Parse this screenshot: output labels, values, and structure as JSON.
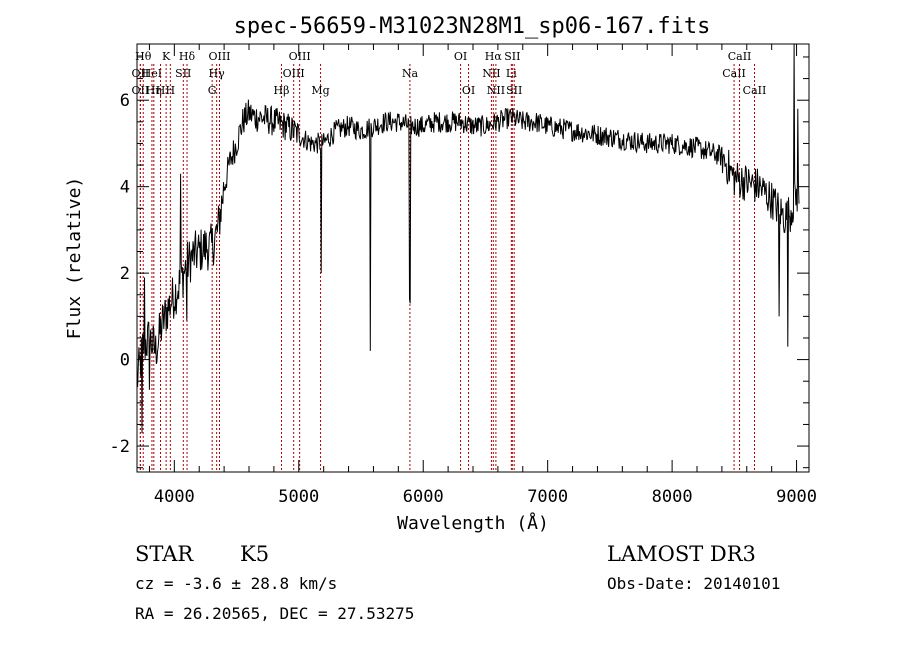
{
  "chart_data": {
    "type": "line",
    "title": "spec-56659-M31023N28M1_sp06-167.fits",
    "xlabel": "Wavelength (Å)",
    "ylabel": "Flux (relative)",
    "xlim": [
      3700,
      9100
    ],
    "ylim": [
      -2.6,
      7.3
    ],
    "xticks": [
      4000,
      5000,
      6000,
      7000,
      8000,
      9000
    ],
    "xtick_labels": [
      "4000",
      "5000",
      "6000",
      "7000",
      "8000",
      "9000"
    ],
    "yticks": [
      -2,
      0,
      2,
      4,
      6
    ],
    "ytick_labels": [
      "-2",
      "0",
      "2",
      "4",
      "6"
    ],
    "grid": false,
    "legend": "none",
    "line_color": "#000000",
    "marker_color": "#b00000",
    "spectrum_envelope": {
      "x": [
        3700,
        3750,
        3800,
        3850,
        3900,
        3950,
        4000,
        4050,
        4100,
        4150,
        4200,
        4250,
        4300,
        4350,
        4400,
        4450,
        4500,
        4550,
        4600,
        4650,
        4700,
        4800,
        4900,
        5000,
        5100,
        5200,
        5300,
        5400,
        5500,
        5600,
        5700,
        5800,
        5900,
        6000,
        6100,
        6200,
        6300,
        6400,
        6500,
        6600,
        6700,
        6800,
        6900,
        7000,
        7200,
        7400,
        7600,
        7800,
        8000,
        8200,
        8400,
        8500,
        8600,
        8700,
        8800,
        8850,
        8900,
        8950,
        9000
      ],
      "y": [
        -0.5,
        0.3,
        0.5,
        0.2,
        0.8,
        1.2,
        1.5,
        1.8,
        2.2,
        2.4,
        2.5,
        2.6,
        2.6,
        3.0,
        4.0,
        4.6,
        5.0,
        5.5,
        5.7,
        5.6,
        5.6,
        5.5,
        5.4,
        5.2,
        5.0,
        5.0,
        5.3,
        5.4,
        5.3,
        5.4,
        5.5,
        5.5,
        5.4,
        5.4,
        5.5,
        5.5,
        5.5,
        5.4,
        5.4,
        5.5,
        5.6,
        5.5,
        5.5,
        5.4,
        5.3,
        5.2,
        5.1,
        5.0,
        5.0,
        4.9,
        4.7,
        4.2,
        4.1,
        4.0,
        3.7,
        3.5,
        3.3,
        3.4,
        3.8
      ]
    },
    "spectrum_dips": [
      {
        "x": 3740,
        "y": -1.7
      },
      {
        "x": 3800,
        "y": -0.7
      },
      {
        "x": 4100,
        "y": 0.9
      },
      {
        "x": 5180,
        "y": 2.0
      },
      {
        "x": 5577,
        "y": 0.2
      },
      {
        "x": 5890,
        "y": 1.4
      },
      {
        "x": 5896,
        "y": 1.3
      },
      {
        "x": 8860,
        "y": 1.0
      },
      {
        "x": 8930,
        "y": 0.3
      }
    ],
    "spectrum_peaks": [
      {
        "x": 3760,
        "y": 1.9
      },
      {
        "x": 4050,
        "y": 4.3
      },
      {
        "x": 8980,
        "y": 7.3
      },
      {
        "x": 9010,
        "y": 5.8
      }
    ],
    "lines": [
      {
        "x": 3750,
        "label": "Hθ",
        "row": 0
      },
      {
        "x": 3727,
        "label": "OII",
        "row": 1
      },
      {
        "x": 3727,
        "label": "OII",
        "row": 2
      },
      {
        "x": 3820,
        "label": "HeI",
        "row": 1
      },
      {
        "x": 3835,
        "label": "Hη",
        "row": 2
      },
      {
        "x": 3889,
        "label": "H",
        "row": 2
      },
      {
        "x": 3934,
        "label": "K",
        "row": 0
      },
      {
        "x": 3968,
        "label": "H",
        "row": 2
      },
      {
        "x": 4072,
        "label": "SII",
        "row": 1
      },
      {
        "x": 4102,
        "label": "Hδ",
        "row": 0
      },
      {
        "x": 4304,
        "label": "G",
        "row": 2
      },
      {
        "x": 4340,
        "label": "Hγ",
        "row": 1
      },
      {
        "x": 4363,
        "label": "OIII",
        "row": 0
      },
      {
        "x": 4861,
        "label": "Hβ",
        "row": 2
      },
      {
        "x": 4959,
        "label": "OIII",
        "row": 1
      },
      {
        "x": 5007,
        "label": "OIII",
        "row": 0
      },
      {
        "x": 5175,
        "label": "Mg",
        "row": 2
      },
      {
        "x": 5893,
        "label": "Na",
        "row": 1
      },
      {
        "x": 6300,
        "label": "OI",
        "row": 0
      },
      {
        "x": 6364,
        "label": "OI",
        "row": 2
      },
      {
        "x": 6548,
        "label": "NII",
        "row": 1
      },
      {
        "x": 6563,
        "label": "Hα",
        "row": 0
      },
      {
        "x": 6584,
        "label": "NII",
        "row": 2
      },
      {
        "x": 6708,
        "label": "Li",
        "row": 1
      },
      {
        "x": 6716,
        "label": "SII",
        "row": 0
      },
      {
        "x": 6731,
        "label": "SII",
        "row": 2
      },
      {
        "x": 8498,
        "label": "CaII",
        "row": 1
      },
      {
        "x": 8542,
        "label": "CaII",
        "row": 0
      },
      {
        "x": 8662,
        "label": "CaII",
        "row": 2
      }
    ]
  },
  "info": {
    "object_class": "STAR",
    "subclass": "K5",
    "survey": "LAMOST DR3",
    "redshift": "cz = -3.6 ± 28.8 km/s",
    "obs_date": "Obs-Date: 20140101",
    "coords": "RA =  26.20565, DEC =  27.53275"
  }
}
